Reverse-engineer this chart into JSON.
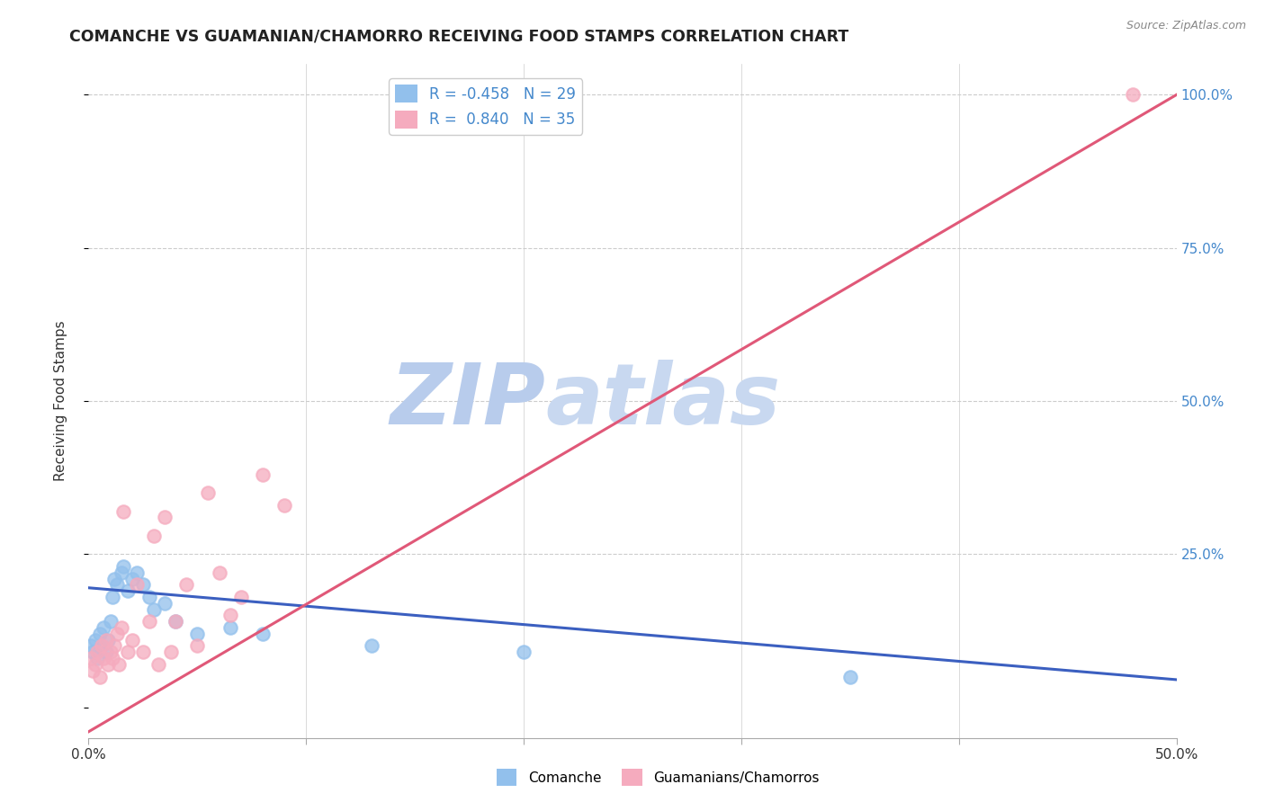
{
  "title": "COMANCHE VS GUAMANIAN/CHAMORRO RECEIVING FOOD STAMPS CORRELATION CHART",
  "source": "Source: ZipAtlas.com",
  "ylabel": "Receiving Food Stamps",
  "xlim": [
    0.0,
    0.5
  ],
  "ylim": [
    -0.05,
    1.05
  ],
  "ylim_display": [
    0.0,
    1.0
  ],
  "legend_r_blue": "-0.458",
  "legend_n_blue": "29",
  "legend_r_pink": "0.840",
  "legend_n_pink": "35",
  "legend_label_blue": "Comanche",
  "legend_label_pink": "Guamanians/Chamorros",
  "blue_color": "#92C0EC",
  "pink_color": "#F5ABBE",
  "blue_line_color": "#3B5FC0",
  "pink_line_color": "#E05878",
  "watermark_zip": "ZIP",
  "watermark_atlas": "atlas",
  "watermark_color": "#D0DFF5",
  "blue_x": [
    0.001,
    0.002,
    0.003,
    0.004,
    0.005,
    0.006,
    0.007,
    0.008,
    0.009,
    0.01,
    0.011,
    0.012,
    0.013,
    0.015,
    0.016,
    0.018,
    0.02,
    0.022,
    0.025,
    0.028,
    0.03,
    0.035,
    0.04,
    0.05,
    0.065,
    0.08,
    0.13,
    0.2,
    0.35
  ],
  "blue_y": [
    0.1,
    0.09,
    0.11,
    0.08,
    0.12,
    0.1,
    0.13,
    0.09,
    0.11,
    0.14,
    0.18,
    0.21,
    0.2,
    0.22,
    0.23,
    0.19,
    0.21,
    0.22,
    0.2,
    0.18,
    0.16,
    0.17,
    0.14,
    0.12,
    0.13,
    0.12,
    0.1,
    0.09,
    0.05
  ],
  "pink_x": [
    0.001,
    0.002,
    0.003,
    0.004,
    0.005,
    0.006,
    0.007,
    0.008,
    0.009,
    0.01,
    0.011,
    0.012,
    0.013,
    0.014,
    0.015,
    0.016,
    0.018,
    0.02,
    0.022,
    0.025,
    0.028,
    0.03,
    0.032,
    0.035,
    0.038,
    0.04,
    0.045,
    0.05,
    0.055,
    0.06,
    0.065,
    0.07,
    0.08,
    0.09,
    0.48
  ],
  "pink_y": [
    0.08,
    0.06,
    0.07,
    0.09,
    0.05,
    0.1,
    0.08,
    0.11,
    0.07,
    0.09,
    0.08,
    0.1,
    0.12,
    0.07,
    0.13,
    0.32,
    0.09,
    0.11,
    0.2,
    0.09,
    0.14,
    0.28,
    0.07,
    0.31,
    0.09,
    0.14,
    0.2,
    0.1,
    0.35,
    0.22,
    0.15,
    0.18,
    0.38,
    0.33,
    1.0
  ],
  "background_color": "#FFFFFF",
  "grid_color": "#CCCCCC",
  "blue_line_x0": 0.0,
  "blue_line_y0": 0.195,
  "blue_line_x1": 0.5,
  "blue_line_y1": 0.045,
  "pink_line_x0": 0.0,
  "pink_line_y0": -0.04,
  "pink_line_x1": 0.5,
  "pink_line_y1": 1.0
}
